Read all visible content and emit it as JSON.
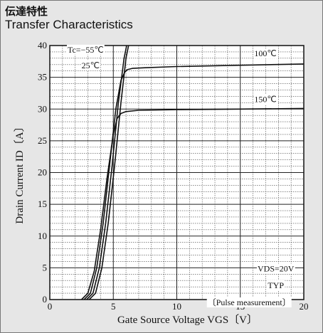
{
  "title_jp": "伝達特性",
  "title_en": "Transfer Characteristics",
  "chart_data": {
    "type": "line",
    "xlabel": "Gate Source Voltage  VGS〔V〕",
    "ylabel": "Drain Current  ID〔A〕",
    "xlim": [
      0,
      20
    ],
    "ylim": [
      0,
      40
    ],
    "xticks": [
      0,
      5,
      10,
      15,
      20
    ],
    "yticks": [
      0,
      5,
      10,
      15,
      20,
      25,
      30,
      35,
      40
    ],
    "grid": true,
    "series": [
      {
        "name": "Tc=−55℃",
        "x": [
          3.1,
          3.6,
          4.1,
          4.6,
          5.1,
          5.6,
          6.0,
          6.2
        ],
        "y": [
          0,
          1,
          5,
          12,
          21,
          31,
          38,
          40
        ]
      },
      {
        "name": "25℃",
        "x": [
          2.9,
          3.4,
          3.9,
          4.4,
          4.9,
          5.4,
          5.85,
          6.05
        ],
        "y": [
          0,
          1,
          5,
          12,
          21,
          31,
          38,
          40
        ]
      },
      {
        "name": "100℃",
        "x": [
          2.7,
          3.2,
          3.7,
          4.2,
          4.7,
          5.2,
          5.6,
          5.9,
          6.1,
          6.5,
          7.5,
          10,
          15,
          20
        ],
        "y": [
          0,
          1,
          5,
          12,
          21,
          30,
          34.5,
          35.8,
          36.2,
          36.4,
          36.5,
          36.7,
          36.9,
          37.1
        ]
      },
      {
        "name": "150℃",
        "x": [
          2.5,
          3.0,
          3.5,
          4.0,
          4.5,
          5.0,
          5.3,
          5.6,
          6.0,
          7.0,
          10,
          15,
          20
        ],
        "y": [
          0,
          1,
          4.5,
          11,
          19,
          26,
          28.5,
          29.3,
          29.6,
          29.8,
          29.9,
          30.0,
          30.1
        ]
      }
    ],
    "annotations": [
      {
        "text": "VDS=20V",
        "x": 17.8,
        "y": 4.4
      },
      {
        "text": "TYP",
        "x": 17.8,
        "y": 1.8
      },
      {
        "text": "〔Pulse measurement〕",
        "x": 15.7,
        "y": -0.9
      }
    ]
  }
}
